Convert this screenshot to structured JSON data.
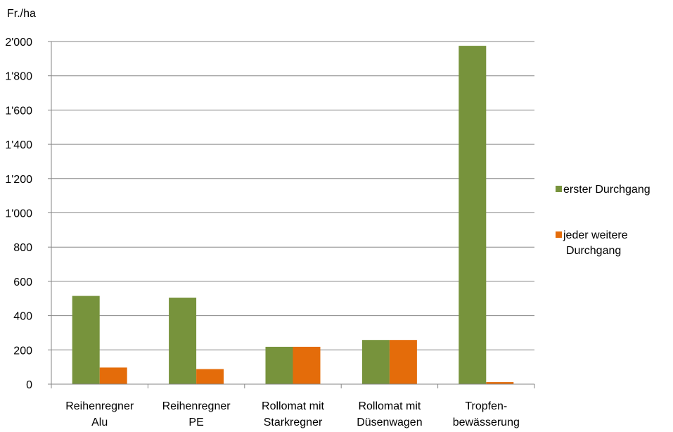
{
  "chart_data": {
    "type": "bar",
    "ylabel": "Fr./ha",
    "ylim": [
      0,
      2000
    ],
    "yticks": [
      0,
      200,
      400,
      600,
      800,
      1000,
      1200,
      1400,
      1600,
      1800,
      2000
    ],
    "ytick_labels": [
      "0",
      "200",
      "400",
      "600",
      "800",
      "1'000",
      "1'200",
      "1'400",
      "1'600",
      "1'800",
      "2'000"
    ],
    "grid": true,
    "legend_position": "right",
    "categories": [
      [
        "Reihenregner",
        "Alu"
      ],
      [
        "Reihenregner",
        "PE"
      ],
      [
        "Rollomat mit",
        "Starkregner"
      ],
      [
        "Rollomat mit",
        "Düsenwagen"
      ],
      [
        "Tropfen-",
        "bewässerung"
      ]
    ],
    "series": [
      {
        "name": "erster Durchgang",
        "legend_lines": [
          "erster Durchgang"
        ],
        "color": "#77933c",
        "values": [
          515,
          505,
          218,
          258,
          1975
        ]
      },
      {
        "name": "jeder weitere Durchgang",
        "legend_lines": [
          "jeder weitere",
          "Durchgang"
        ],
        "color": "#e46c0a",
        "values": [
          97,
          88,
          218,
          258,
          12
        ]
      }
    ]
  }
}
